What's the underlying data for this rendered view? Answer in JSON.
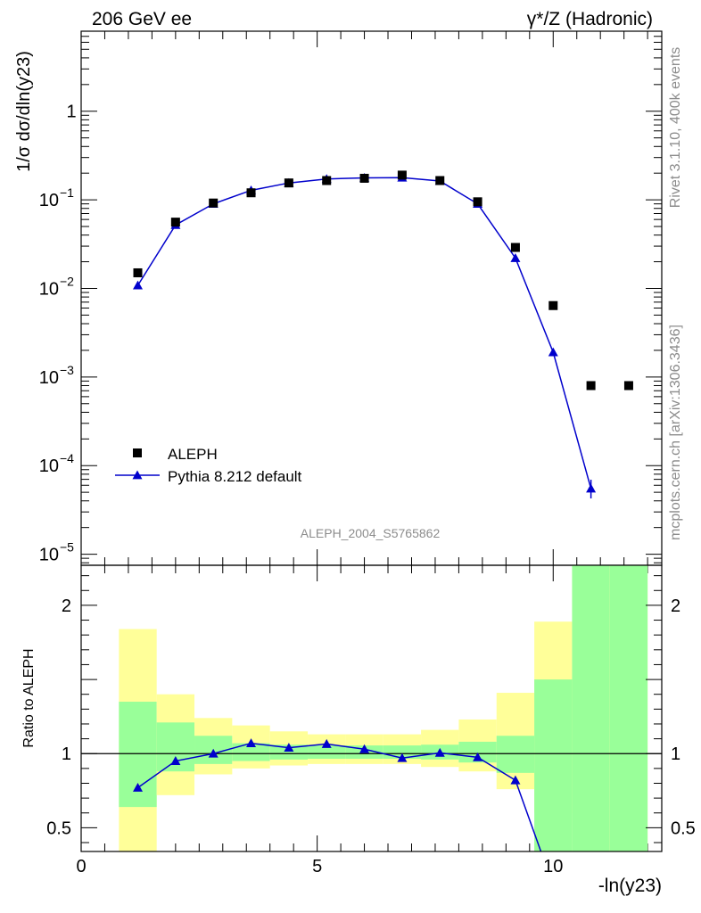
{
  "header": {
    "left": "206 GeV ee",
    "right": "γ*/Z (Hadronic)"
  },
  "side_labels": {
    "rivet": "Rivet 3.1.10,  400k events",
    "mcplots": "mcplots.cern.ch [arXiv:1306.3436]"
  },
  "analysis_id": "ALEPH_2004_S5765862",
  "chart_data": [
    {
      "type": "scatter",
      "panel": "main",
      "y_scale": "log",
      "ylabel": "1/σ  dσ/dln(y23)",
      "xlim": [
        0,
        12.3
      ],
      "ylim": [
        7.5e-06,
        8
      ],
      "y_ticks": [
        {
          "value": 1,
          "label": "1"
        },
        {
          "value": 0.1,
          "label": "10",
          "exp": "−1"
        },
        {
          "value": 0.01,
          "label": "10",
          "exp": "−2"
        },
        {
          "value": 0.001,
          "label": "10",
          "exp": "−3"
        },
        {
          "value": 0.0001,
          "label": "10",
          "exp": "−4"
        },
        {
          "value": 1e-05,
          "label": "10",
          "exp": "−5"
        }
      ],
      "legend_position": "bottom-left",
      "series": [
        {
          "name": "ALEPH",
          "marker": "square",
          "color": "#000000",
          "x": [
            1.2,
            2.0,
            2.8,
            3.6,
            4.4,
            5.2,
            6.0,
            6.8,
            7.6,
            8.4,
            9.2,
            10.0,
            10.8,
            11.6
          ],
          "y": [
            0.015,
            0.056,
            0.092,
            0.12,
            0.155,
            0.165,
            0.175,
            0.19,
            0.165,
            0.095,
            0.029,
            0.0064,
            0.0008,
            0.0008
          ]
        },
        {
          "name": "Pythia 8.212 default",
          "marker": "triangle",
          "color": "#0000cc",
          "x": [
            1.2,
            2.0,
            2.8,
            3.6,
            4.4,
            5.2,
            6.0,
            6.8,
            7.6,
            8.4,
            9.2,
            10.0,
            10.8
          ],
          "y": [
            0.0108,
            0.052,
            0.09,
            0.128,
            0.155,
            0.172,
            0.177,
            0.178,
            0.163,
            0.09,
            0.022,
            0.0019,
            5.5e-05
          ]
        }
      ]
    },
    {
      "type": "line",
      "panel": "ratio",
      "ylabel": "Ratio to ALEPH",
      "xlabel": "-ln(y23)",
      "xlim": [
        0,
        12.3
      ],
      "ylim": [
        0.34,
        2.27
      ],
      "x_ticks": [
        {
          "value": 0,
          "label": "0"
        },
        {
          "value": 5,
          "label": "5"
        },
        {
          "value": 10,
          "label": "10"
        }
      ],
      "y_ticks": [
        {
          "value": 0.5,
          "label": "0.5"
        },
        {
          "value": 1,
          "label": "1"
        },
        {
          "value": 2,
          "label": "2"
        }
      ],
      "bands": {
        "bin_edges": [
          0.8,
          1.6,
          2.4,
          3.2,
          4.0,
          4.8,
          5.6,
          6.4,
          7.2,
          8.0,
          8.8,
          9.6,
          10.4,
          11.2,
          12.0
        ],
        "green_low": [
          0.64,
          0.88,
          0.93,
          0.95,
          0.96,
          0.965,
          0.965,
          0.965,
          0.96,
          0.94,
          0.87,
          0.34,
          0.34,
          0.34
        ],
        "green_high": [
          1.35,
          1.21,
          1.12,
          1.07,
          1.06,
          1.055,
          1.055,
          1.055,
          1.06,
          1.08,
          1.12,
          1.5,
          2.27,
          2.27
        ],
        "yellow_low": [
          0.34,
          0.72,
          0.86,
          0.9,
          0.92,
          0.93,
          0.93,
          0.93,
          0.91,
          0.88,
          0.76,
          0.6,
          0.34,
          0.34
        ],
        "yellow_high": [
          1.84,
          1.4,
          1.24,
          1.19,
          1.15,
          1.13,
          1.13,
          1.13,
          1.16,
          1.23,
          1.41,
          1.89,
          2.27,
          2.27
        ]
      },
      "series": [
        {
          "name": "Pythia 8.212 default",
          "color": "#0000cc",
          "x": [
            1.2,
            2.0,
            2.8,
            3.6,
            4.4,
            5.2,
            6.0,
            6.8,
            7.6,
            8.4,
            9.2,
            9.74
          ],
          "y": [
            0.77,
            0.95,
            1.0,
            1.07,
            1.04,
            1.065,
            1.03,
            0.97,
            1.005,
            0.975,
            0.82,
            0.34
          ],
          "markers": [
            true,
            true,
            true,
            true,
            true,
            true,
            true,
            true,
            true,
            true,
            true,
            false
          ]
        }
      ],
      "reference_line": 1
    }
  ]
}
